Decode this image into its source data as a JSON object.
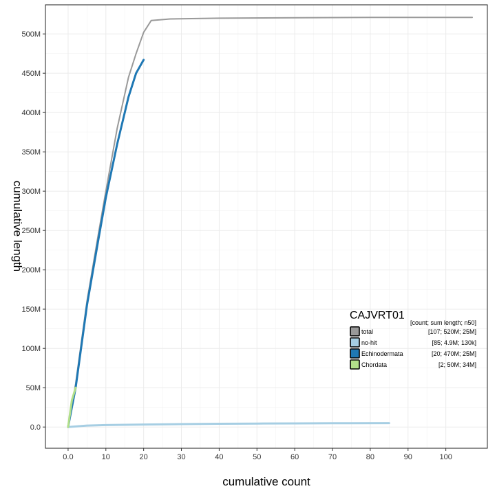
{
  "chart_data": {
    "type": "line",
    "title": "",
    "xlabel": "cumulative count",
    "ylabel": "cumulative length",
    "xlim": [
      -6,
      111
    ],
    "ylim": [
      -27,
      537
    ],
    "x_ticks": [
      0,
      10,
      20,
      30,
      40,
      50,
      60,
      70,
      80,
      90,
      100
    ],
    "x_tick_labels": [
      "0.0",
      "10",
      "20",
      "30",
      "40",
      "50",
      "60",
      "70",
      "80",
      "90",
      "100"
    ],
    "y_ticks": [
      0,
      50,
      100,
      150,
      200,
      250,
      300,
      350,
      400,
      450,
      500
    ],
    "y_tick_labels": [
      "0.0",
      "50M",
      "100M",
      "150M",
      "200M",
      "250M",
      "300M",
      "350M",
      "400M",
      "450M",
      "500M"
    ],
    "y_unit": "M",
    "grid": true,
    "legend": {
      "title": "CAJVRT01",
      "header": "[count; sum length; n50]",
      "placement": "bottom-right"
    },
    "series": [
      {
        "name": "total",
        "stats": "[107; 520M; 25M]",
        "color": "#999999",
        "width": 2,
        "x": [
          0,
          2,
          5,
          8,
          10,
          13,
          16,
          18,
          20,
          22,
          27,
          40,
          60,
          80,
          107
        ],
        "y": [
          0,
          55,
          160,
          245,
          300,
          380,
          445,
          475,
          502,
          517,
          519,
          520,
          520.5,
          521,
          521
        ]
      },
      {
        "name": "no-hit",
        "stats": "[85; 4.9M; 130k]",
        "color": "#a6cee3",
        "width": 3,
        "x": [
          0,
          5,
          10,
          20,
          30,
          40,
          50,
          60,
          70,
          85
        ],
        "y": [
          0,
          1.8,
          2.5,
          3.2,
          3.7,
          4.1,
          4.4,
          4.6,
          4.8,
          4.9
        ]
      },
      {
        "name": "Echinodermata",
        "stats": "[20; 470M; 25M]",
        "color": "#1f78b4",
        "width": 3,
        "x": [
          0,
          2,
          5,
          8,
          10,
          13,
          16,
          18,
          20
        ],
        "y": [
          0,
          50,
          155,
          238,
          292,
          360,
          420,
          450,
          467
        ]
      },
      {
        "name": "Chordata",
        "stats": "[2; 50M; 34M]",
        "color": "#b2df8a",
        "width": 3,
        "x": [
          0,
          1,
          2
        ],
        "y": [
          0,
          34,
          50
        ]
      }
    ]
  }
}
